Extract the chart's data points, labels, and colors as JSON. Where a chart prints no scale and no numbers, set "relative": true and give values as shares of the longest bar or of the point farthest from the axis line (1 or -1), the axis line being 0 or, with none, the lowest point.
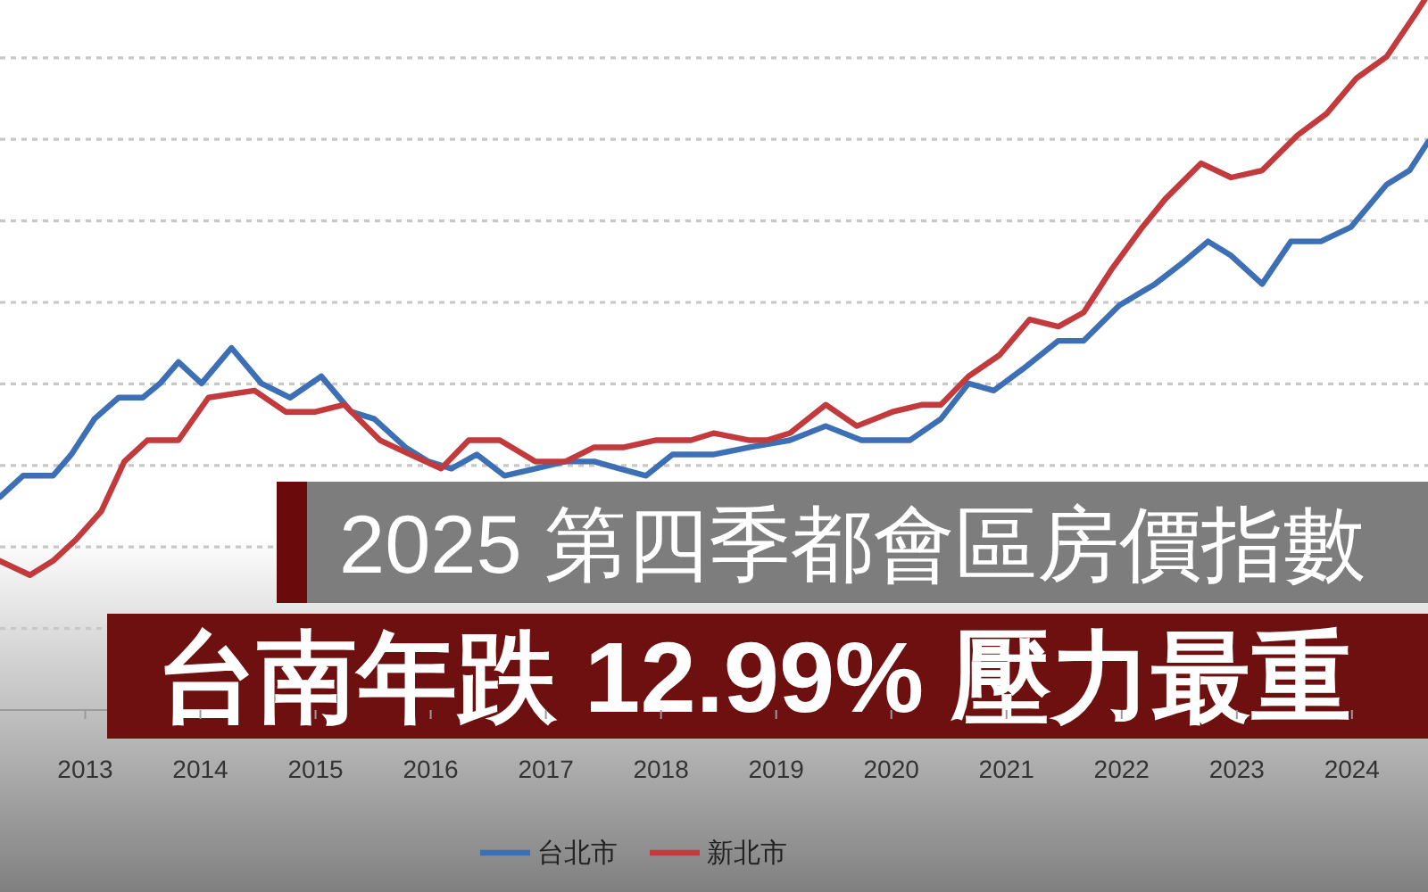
{
  "chart_data": {
    "type": "line",
    "title": "2025 第四季都會區房價指數",
    "subtitle": "台南年跌 12.99% 壓力最重",
    "relative": true,
    "xlim": [
      2012.26,
      2024.66
    ],
    "xticks": [
      2013,
      2014,
      2015,
      2016,
      2017,
      2018,
      2019,
      2020,
      2021,
      2022,
      2023,
      2024
    ],
    "grid": "y",
    "legend": "bottom",
    "series": [
      {
        "name": "台北市",
        "color": "#3d6fb5",
        "x": [
          2012.26,
          2012.46,
          2012.72,
          2012.88,
          2013.08,
          2013.29,
          2013.5,
          2013.65,
          2013.81,
          2014.01,
          2014.27,
          2014.53,
          2014.78,
          2015.05,
          2015.31,
          2015.51,
          2015.78,
          2015.98,
          2016.18,
          2016.4,
          2016.64,
          2016.91,
          2017.17,
          2017.42,
          2017.64,
          2017.87,
          2018.1,
          2018.46,
          2018.77,
          2019.12,
          2019.43,
          2019.74,
          2019.96,
          2020.16,
          2020.43,
          2020.67,
          2020.89,
          2021.14,
          2021.45,
          2021.67,
          2021.98,
          2022.29,
          2022.53,
          2022.75,
          2022.95,
          2023.22,
          2023.47,
          2023.73,
          2023.99,
          2024.3,
          2024.5,
          2024.66
        ],
        "values": [
          0.3,
          0.33,
          0.33,
          0.36,
          0.41,
          0.44,
          0.44,
          0.46,
          0.49,
          0.46,
          0.51,
          0.46,
          0.44,
          0.47,
          0.42,
          0.41,
          0.37,
          0.35,
          0.34,
          0.36,
          0.33,
          0.34,
          0.35,
          0.35,
          0.34,
          0.33,
          0.36,
          0.36,
          0.37,
          0.38,
          0.4,
          0.38,
          0.38,
          0.38,
          0.41,
          0.46,
          0.45,
          0.48,
          0.52,
          0.52,
          0.57,
          0.6,
          0.63,
          0.66,
          0.64,
          0.6,
          0.66,
          0.66,
          0.68,
          0.74,
          0.76,
          0.8
        ]
      },
      {
        "name": "新北市",
        "color": "#c23a3c",
        "x": [
          2012.26,
          2012.52,
          2012.72,
          2012.92,
          2013.14,
          2013.34,
          2013.54,
          2013.81,
          2014.07,
          2014.47,
          2014.74,
          2015.0,
          2015.25,
          2015.56,
          2015.82,
          2016.09,
          2016.33,
          2016.6,
          2016.91,
          2017.17,
          2017.42,
          2017.68,
          2017.95,
          2018.26,
          2018.46,
          2018.77,
          2018.92,
          2019.12,
          2019.43,
          2019.7,
          2020.01,
          2020.27,
          2020.43,
          2020.67,
          2020.94,
          2021.2,
          2021.45,
          2021.67,
          2021.91,
          2022.18,
          2022.38,
          2022.69,
          2022.95,
          2023.22,
          2023.53,
          2023.78,
          2024.04,
          2024.3,
          2024.55,
          2024.63
        ],
        "values": [
          0.21,
          0.19,
          0.21,
          0.24,
          0.28,
          0.35,
          0.38,
          0.38,
          0.44,
          0.45,
          0.42,
          0.42,
          0.43,
          0.38,
          0.36,
          0.34,
          0.38,
          0.38,
          0.35,
          0.35,
          0.37,
          0.37,
          0.38,
          0.38,
          0.39,
          0.38,
          0.38,
          0.39,
          0.43,
          0.4,
          0.42,
          0.43,
          0.43,
          0.47,
          0.5,
          0.55,
          0.54,
          0.56,
          0.62,
          0.68,
          0.72,
          0.77,
          0.75,
          0.76,
          0.81,
          0.84,
          0.89,
          0.92,
          0.98,
          1
        ]
      }
    ]
  }
}
